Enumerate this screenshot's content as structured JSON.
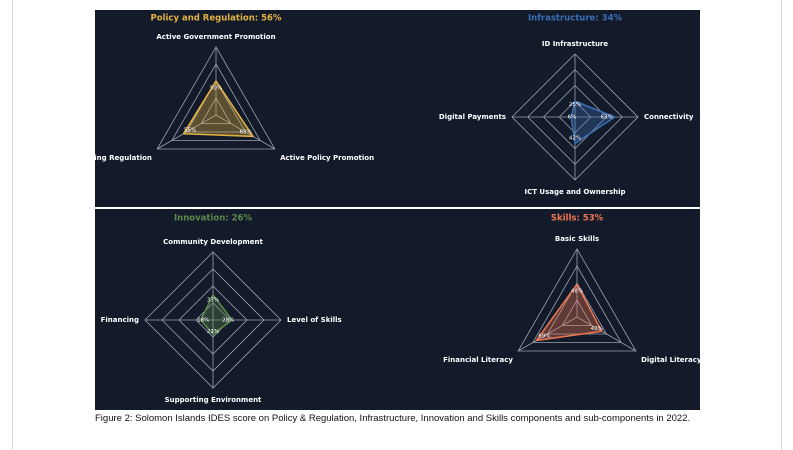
{
  "chart_data": [
    {
      "type": "radar",
      "title": "Policy and Regulation: 56%",
      "color": "#e3b341",
      "categories": [
        "Active Government Promotion",
        "Active Policy Promotion",
        "Existing Regulation"
      ],
      "values": [
        50,
        63,
        55
      ],
      "value_labels": [
        "50%",
        "63%",
        "55%"
      ],
      "rlim": [
        0,
        100
      ],
      "rticks": [
        25,
        50,
        75,
        100
      ]
    },
    {
      "type": "radar",
      "title": "Infrastructure: 34%",
      "color": "#3b6fb5",
      "categories": [
        "ID Infrastructure",
        "Connectivity",
        "ICT Usage and Ownership",
        "Digital Payments"
      ],
      "values": [
        25,
        63,
        42,
        6
      ],
      "value_labels": [
        "25%",
        "63%",
        "42%",
        "6%"
      ],
      "rlim": [
        0,
        100
      ],
      "rticks": [
        25,
        50,
        75,
        100
      ]
    },
    {
      "type": "radar",
      "title": "Innovation: 26%",
      "color": "#5c8a4a",
      "categories": [
        "Community Development",
        "Level of Skills",
        "Supporting Environment",
        "Financing"
      ],
      "values": [
        37,
        28,
        21,
        18
      ],
      "value_labels": [
        "37%",
        "28%",
        "21%",
        "18%"
      ],
      "rlim": [
        0,
        100
      ],
      "rticks": [
        25,
        50,
        75,
        100
      ]
    },
    {
      "type": "radar",
      "title": "Skills: 53%",
      "color": "#f07850",
      "categories": [
        "Basic Skills",
        "Digital Literacy",
        "Financial Literacy"
      ],
      "values": [
        48,
        42,
        69
      ],
      "value_labels": [
        "48%",
        "42%",
        "69%"
      ],
      "rlim": [
        0,
        100
      ],
      "rticks": [
        25,
        50,
        75,
        100
      ]
    }
  ],
  "caption": "Figure 2: Solomon Islands IDES score on Policy & Regulation, Infrastructure, Innovation and Skills components and sub-components in 2022."
}
